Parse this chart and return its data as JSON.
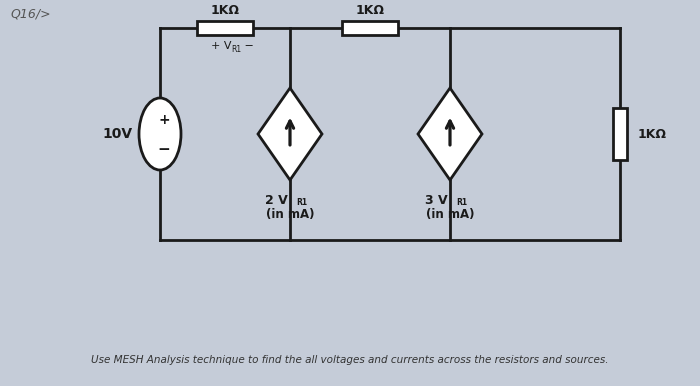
{
  "bg_color": "#c5ccd8",
  "circuit_color": "#1a1a1a",
  "question_label": "Q16/>",
  "res1_label": "1KΩ",
  "res2_label": "1KΩ",
  "res3_label": "1KΩ",
  "vr1_label": "+ V",
  "vr1_sub": "R1",
  "vr1_end": "-",
  "source_label": "10V",
  "cs1_label_line1": "2 V",
  "cs1_sub": "R1",
  "cs1_label_line2": "(in mA)",
  "cs2_label_line1": "3 V",
  "cs2_sub": "R1",
  "cs2_label_line2": "(in mA)",
  "footer_text": "Use MESH Analysis technique to find the all voltages and currents across the resistors and sources.",
  "line_width": 2.0
}
